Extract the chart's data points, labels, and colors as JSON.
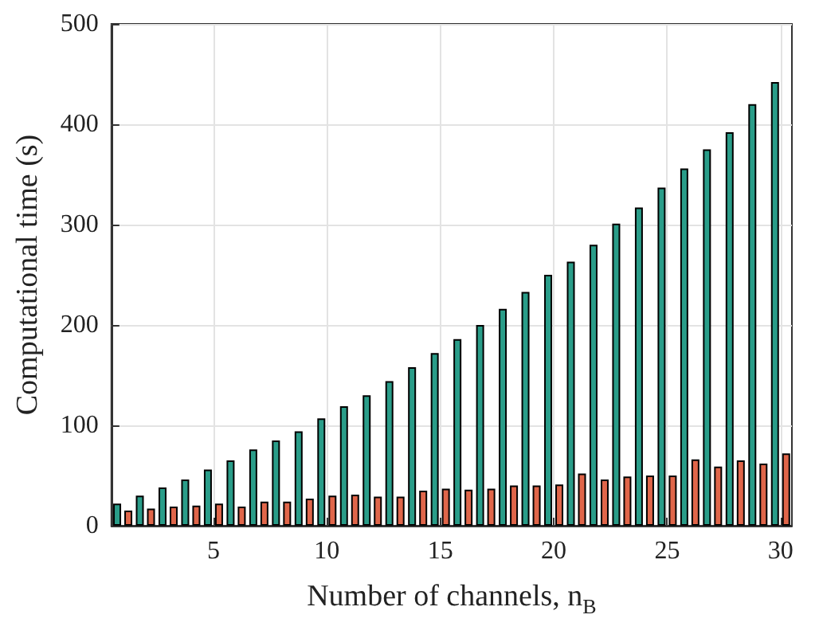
{
  "chart_data": {
    "type": "bar",
    "xlabel": "Number of channels, n$_{B}$",
    "ylabel": "Computational time (s)",
    "x": [
      1,
      2,
      3,
      4,
      5,
      6,
      7,
      8,
      9,
      10,
      11,
      12,
      13,
      14,
      15,
      16,
      17,
      18,
      19,
      20,
      21,
      22,
      23,
      24,
      25,
      26,
      27,
      28,
      29,
      30
    ],
    "series": [
      {
        "color": "#2a9d89",
        "values": [
          22,
          30,
          38,
          46,
          56,
          65,
          76,
          85,
          94,
          107,
          119,
          130,
          144,
          158,
          172,
          186,
          200,
          216,
          233,
          250,
          263,
          280,
          301,
          317,
          337,
          356,
          375,
          392,
          420,
          442
        ]
      },
      {
        "color": "#e0664a",
        "values": [
          15,
          17,
          19,
          20,
          22,
          19,
          24,
          24,
          27,
          30,
          31,
          29,
          29,
          35,
          37,
          36,
          37,
          40,
          40,
          41,
          52,
          46,
          49,
          50,
          50,
          66,
          59,
          65,
          62,
          72
        ]
      }
    ],
    "xlim": [
      0.5,
      30.5
    ],
    "xticks": [
      5,
      10,
      15,
      20,
      25,
      30
    ],
    "ylim": [
      0,
      500
    ],
    "yticks": [
      0,
      100,
      200,
      300,
      400,
      500
    ],
    "grid": true
  }
}
